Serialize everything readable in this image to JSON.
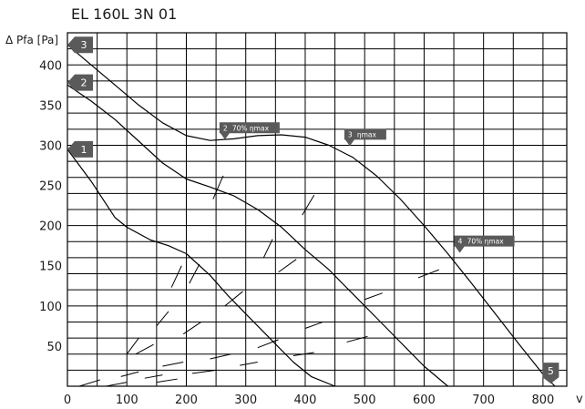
{
  "chart_data": {
    "type": "line",
    "title": "EL 160L 3N 01",
    "ylabel": "Δ Pfa [Pa]",
    "xlabel": "v",
    "xlim": [
      0,
      840
    ],
    "ylim": [
      0,
      440
    ],
    "x_ticks": [
      "0",
      "100",
      "200",
      "300",
      "400",
      "500",
      "600",
      "700",
      "800"
    ],
    "y_ticks": [
      "50",
      "100",
      "150",
      "200",
      "250",
      "300",
      "350",
      "400"
    ],
    "grid": true,
    "series": [
      {
        "name": "1",
        "x": [
          0,
          40,
          80,
          100,
          140,
          170,
          200,
          240,
          270,
          300,
          340,
          380,
          410,
          450
        ],
        "y": [
          295,
          255,
          210,
          198,
          182,
          175,
          165,
          138,
          113,
          90,
          60,
          30,
          12,
          -5
        ]
      },
      {
        "name": "2",
        "x": [
          0,
          40,
          80,
          120,
          160,
          200,
          240,
          280,
          320,
          360,
          400,
          440,
          480,
          520,
          560,
          600,
          640
        ],
        "y": [
          375,
          355,
          332,
          305,
          278,
          258,
          248,
          237,
          220,
          198,
          170,
          145,
          115,
          85,
          55,
          25,
          -5
        ]
      },
      {
        "name": "3",
        "x": [
          0,
          40,
          80,
          120,
          160,
          200,
          240,
          280,
          320,
          360,
          400,
          440,
          480,
          520,
          560,
          600,
          640,
          680,
          720,
          760,
          800,
          820
        ],
        "y": [
          425,
          400,
          375,
          350,
          328,
          312,
          306,
          308,
          312,
          313,
          310,
          300,
          285,
          262,
          233,
          200,
          165,
          128,
          90,
          52,
          15,
          0
        ]
      }
    ],
    "curve_labels": [
      "3",
      "2",
      "1",
      "5"
    ],
    "annotations": [
      {
        "num": "2",
        "text": "70% ηmax",
        "x": 265,
        "y": 307
      },
      {
        "num": "3",
        "text": "ηmax",
        "x": 475,
        "y": 299
      },
      {
        "num": "4",
        "text": "70% ηmax",
        "x": 660,
        "y": 166
      }
    ]
  }
}
